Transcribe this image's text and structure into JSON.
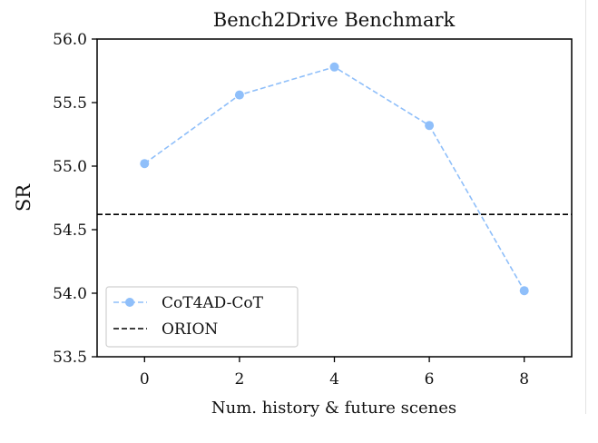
{
  "chart_data": {
    "type": "line",
    "title": "Bench2Drive Benchmark",
    "xlabel": "Num. history & future scenes",
    "ylabel": "SR",
    "xlim": [
      -1,
      9
    ],
    "ylim": [
      53.5,
      56.0
    ],
    "xticks": [
      "0",
      "2",
      "4",
      "6",
      "8"
    ],
    "yticks": [
      "53.5",
      "54.0",
      "54.5",
      "55.0",
      "55.5",
      "56.0"
    ],
    "grid": false,
    "legend_position": "lower-left",
    "series": [
      {
        "name": "CoT4AD-CoT",
        "x": [
          0,
          2,
          4,
          6,
          8
        ],
        "y": [
          55.02,
          55.56,
          55.78,
          55.32,
          54.02
        ],
        "color": "#8fbffa",
        "style": "dashed-with-markers"
      },
      {
        "name": "ORION",
        "y_constant": 54.62,
        "color": "#000000",
        "style": "dashed-horizontal"
      }
    ]
  }
}
